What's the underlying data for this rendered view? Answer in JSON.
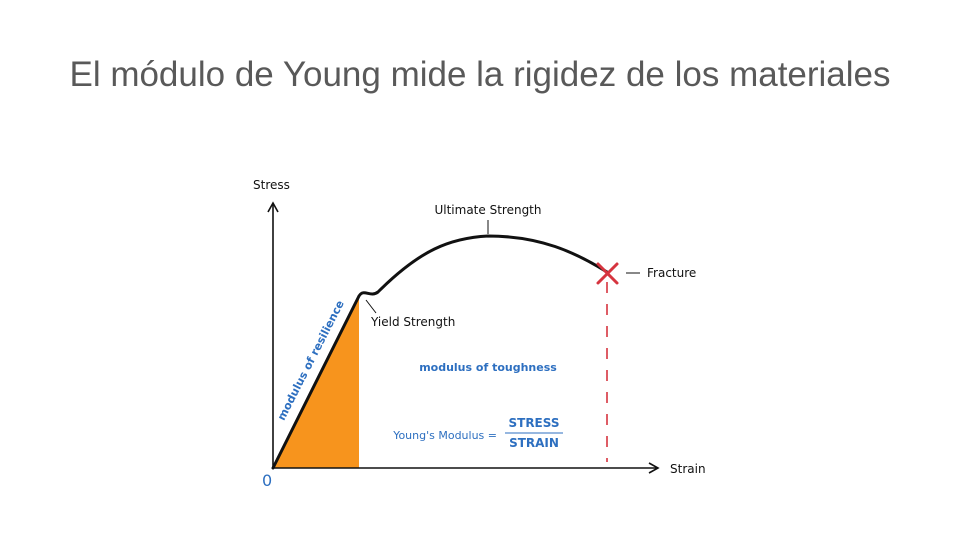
{
  "slide": {
    "title": "El módulo de Young mide la rigidez de los materiales"
  },
  "diagram": {
    "axis_y_label": "Stress",
    "axis_x_label": "Strain",
    "origin_label": "0",
    "ultimate_label": "Ultimate Strength",
    "fracture_label": "Fracture",
    "yield_label": "Yield Strength",
    "resilience_label": "modulus of resilience",
    "toughness_label": "modulus of toughness",
    "youngs_label": "Young's Modulus =",
    "numerator": "STRESS",
    "denominator": "STRAIN",
    "colors": {
      "curve": "#111111",
      "resilience_fill": "#F7941D",
      "blue_text": "#2D6FC0",
      "fracture_mark": "#D6343F"
    }
  }
}
